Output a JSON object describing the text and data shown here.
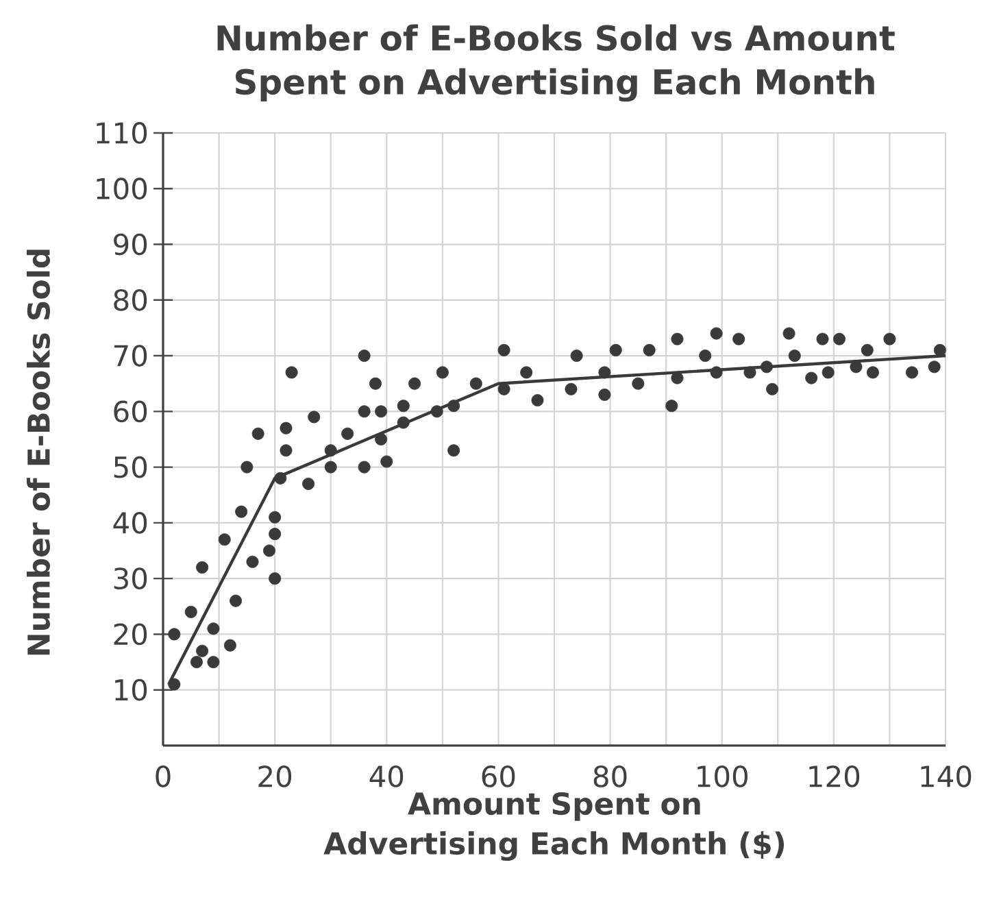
{
  "chart_data": {
    "type": "scatter",
    "title": "Number of E-Books Sold vs Amount Spent on Advertising Each Month",
    "xlabel": "Amount Spent on Advertising Each Month ($)",
    "ylabel": "Number of E-Books Sold",
    "xlim": [
      0,
      140
    ],
    "ylim": [
      0,
      110
    ],
    "xticks": [
      0,
      {
        "value": 10,
        "label": null
      },
      20,
      {
        "value": 30,
        "label": null
      },
      40,
      {
        "value": 50,
        "label": null
      },
      60,
      {
        "value": 70,
        "label": null
      },
      80,
      {
        "value": 90,
        "label": null
      },
      100,
      {
        "value": 110,
        "label": null
      },
      120,
      {
        "value": 130,
        "label": null
      },
      140
    ],
    "yticks": [
      10,
      20,
      30,
      40,
      50,
      60,
      70,
      80,
      90,
      100,
      110
    ],
    "grid": true,
    "series": [
      {
        "color": "#3a3a3a",
        "marker": "circle",
        "x": [
          2,
          2,
          5,
          6,
          7,
          7,
          9,
          9,
          11,
          12,
          13,
          14,
          15,
          16,
          17,
          19,
          20,
          20,
          20,
          21,
          22,
          22,
          23,
          26,
          27,
          30,
          30,
          33,
          36,
          36,
          36,
          38,
          39,
          39,
          40,
          43,
          43,
          45,
          49,
          50,
          52,
          52,
          56,
          61,
          61,
          65,
          67,
          73,
          74,
          79,
          79,
          81,
          85,
          87,
          91,
          92,
          92,
          97,
          99,
          99,
          103,
          105,
          108,
          109,
          112,
          113,
          116,
          118,
          119,
          121,
          124,
          126,
          127,
          130,
          134,
          138,
          139
        ],
        "values": [
          20,
          11,
          24,
          15,
          32,
          17,
          15,
          21,
          37,
          18,
          26,
          42,
          50,
          33,
          56,
          35,
          41,
          38,
          30,
          48,
          57,
          53,
          67,
          47,
          59,
          50,
          53,
          56,
          70,
          60,
          50,
          65,
          60,
          55,
          51,
          61,
          58,
          65,
          60,
          67,
          53,
          61,
          65,
          71,
          64,
          67,
          62,
          64,
          70,
          67,
          63,
          71,
          65,
          71,
          61,
          73,
          66,
          70,
          74,
          67,
          73,
          67,
          68,
          64,
          74,
          70,
          66,
          73,
          67,
          73,
          68,
          71,
          67,
          73,
          67,
          68,
          71
        ]
      },
      {
        "type": "line",
        "color": "#3a3a3a",
        "marker": "none",
        "x": [
          1,
          20,
          60,
          140
        ],
        "values": [
          11,
          48,
          65,
          70
        ]
      }
    ]
  }
}
